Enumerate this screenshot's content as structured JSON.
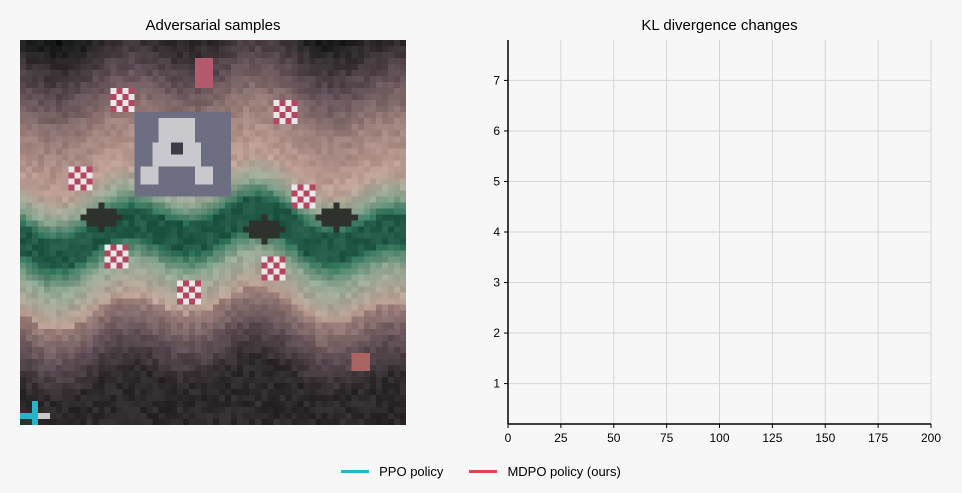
{
  "chart_data": [
    {
      "type": "image",
      "title": "Adversarial samples"
    },
    {
      "type": "line",
      "title": "KL divergence changes",
      "xlabel": "",
      "ylabel": "",
      "xlim": [
        0,
        200
      ],
      "ylim": [
        0.2,
        7.8
      ],
      "xticks": [
        0,
        25,
        50,
        75,
        100,
        125,
        150,
        175,
        200
      ],
      "yticks": [
        1,
        2,
        3,
        4,
        5,
        6,
        7
      ],
      "grid": true,
      "legend_position": "bottom-center",
      "series": [
        {
          "name": "PPO policy",
          "color": "#22b8cf",
          "values": []
        },
        {
          "name": "MDPO policy (ours)",
          "color": "#e0454f",
          "values": []
        }
      ]
    }
  ]
}
